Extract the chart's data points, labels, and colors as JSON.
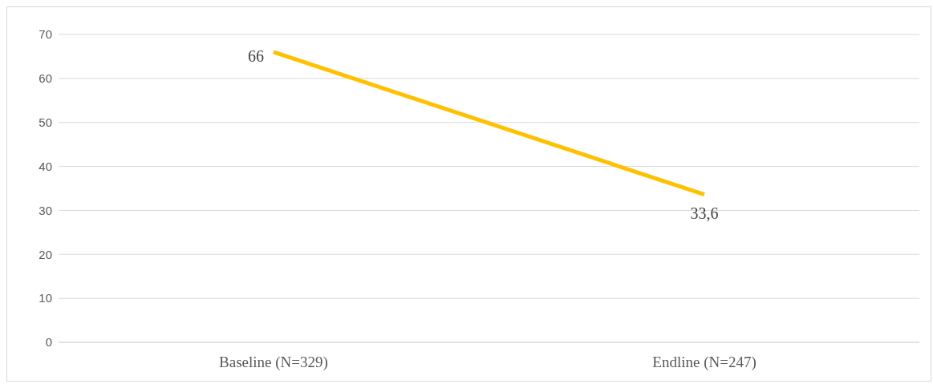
{
  "chart_data": {
    "type": "line",
    "categories": [
      "Baseline (N=329)",
      "Endline (N=247)"
    ],
    "series": [
      {
        "color": "#ffc000",
        "values": [
          66,
          33.6
        ],
        "value_labels": [
          "66",
          "33,6"
        ]
      }
    ],
    "ylim": [
      0,
      70
    ],
    "yticks": [
      0,
      10,
      20,
      30,
      40,
      50,
      60,
      70
    ],
    "grid": "y",
    "marker": "none",
    "line_style": "solid"
  }
}
